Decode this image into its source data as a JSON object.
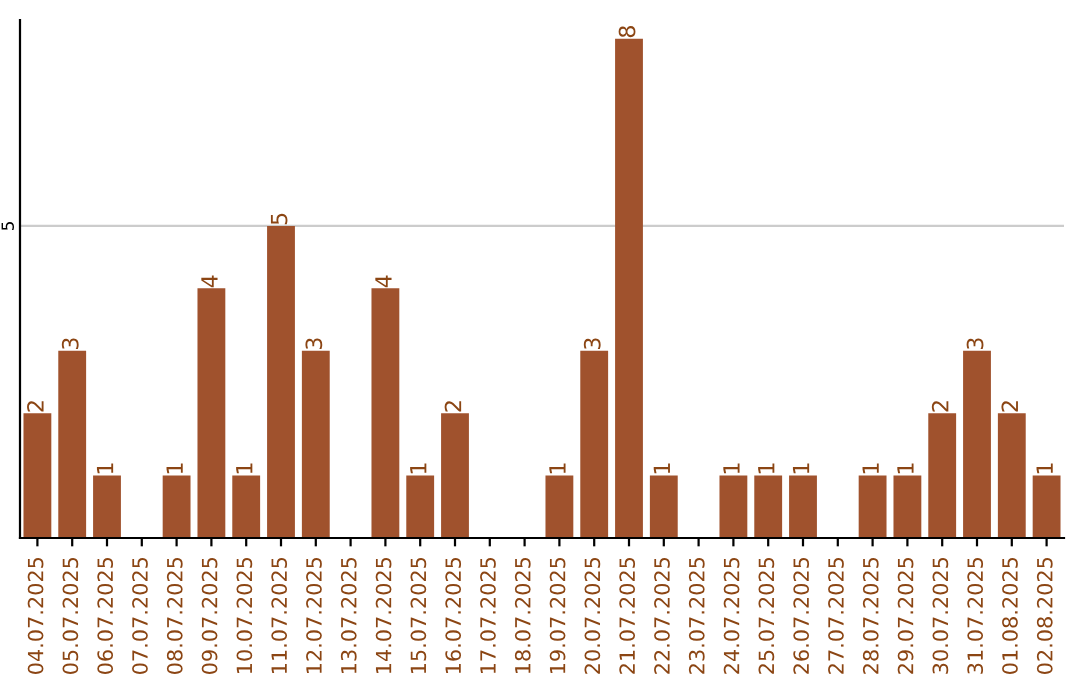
{
  "chart_data": {
    "type": "bar",
    "categories": [
      "04.07.2025",
      "05.07.2025",
      "06.07.2025",
      "07.07.2025",
      "08.07.2025",
      "09.07.2025",
      "10.07.2025",
      "11.07.2025",
      "12.07.2025",
      "13.07.2025",
      "14.07.2025",
      "15.07.2025",
      "16.07.2025",
      "17.07.2025",
      "18.07.2025",
      "19.07.2025",
      "20.07.2025",
      "21.07.2025",
      "22.07.2025",
      "23.07.2025",
      "24.07.2025",
      "25.07.2025",
      "26.07.2025",
      "27.07.2025",
      "28.07.2025",
      "29.07.2025",
      "30.07.2025",
      "31.07.2025",
      "01.08.2025",
      "02.08.2025"
    ],
    "values": [
      2,
      3,
      1,
      0,
      1,
      4,
      1,
      5,
      3,
      0,
      4,
      1,
      2,
      0,
      0,
      1,
      3,
      8,
      1,
      0,
      1,
      1,
      1,
      0,
      1,
      1,
      2,
      3,
      2,
      1
    ],
    "value_labels": [
      "2",
      "3",
      "1",
      null,
      "1",
      "4",
      "1",
      "5",
      "3",
      null,
      "4",
      "1",
      "2",
      null,
      null,
      "1",
      "3",
      "8",
      "1",
      null,
      "1",
      "1",
      "1",
      null,
      "1",
      "1",
      "2",
      "3",
      "2",
      "1"
    ],
    "color": "#a0522d",
    "ylim": [
      0,
      8.3
    ],
    "yticks": [
      5
    ],
    "grid": "y"
  }
}
